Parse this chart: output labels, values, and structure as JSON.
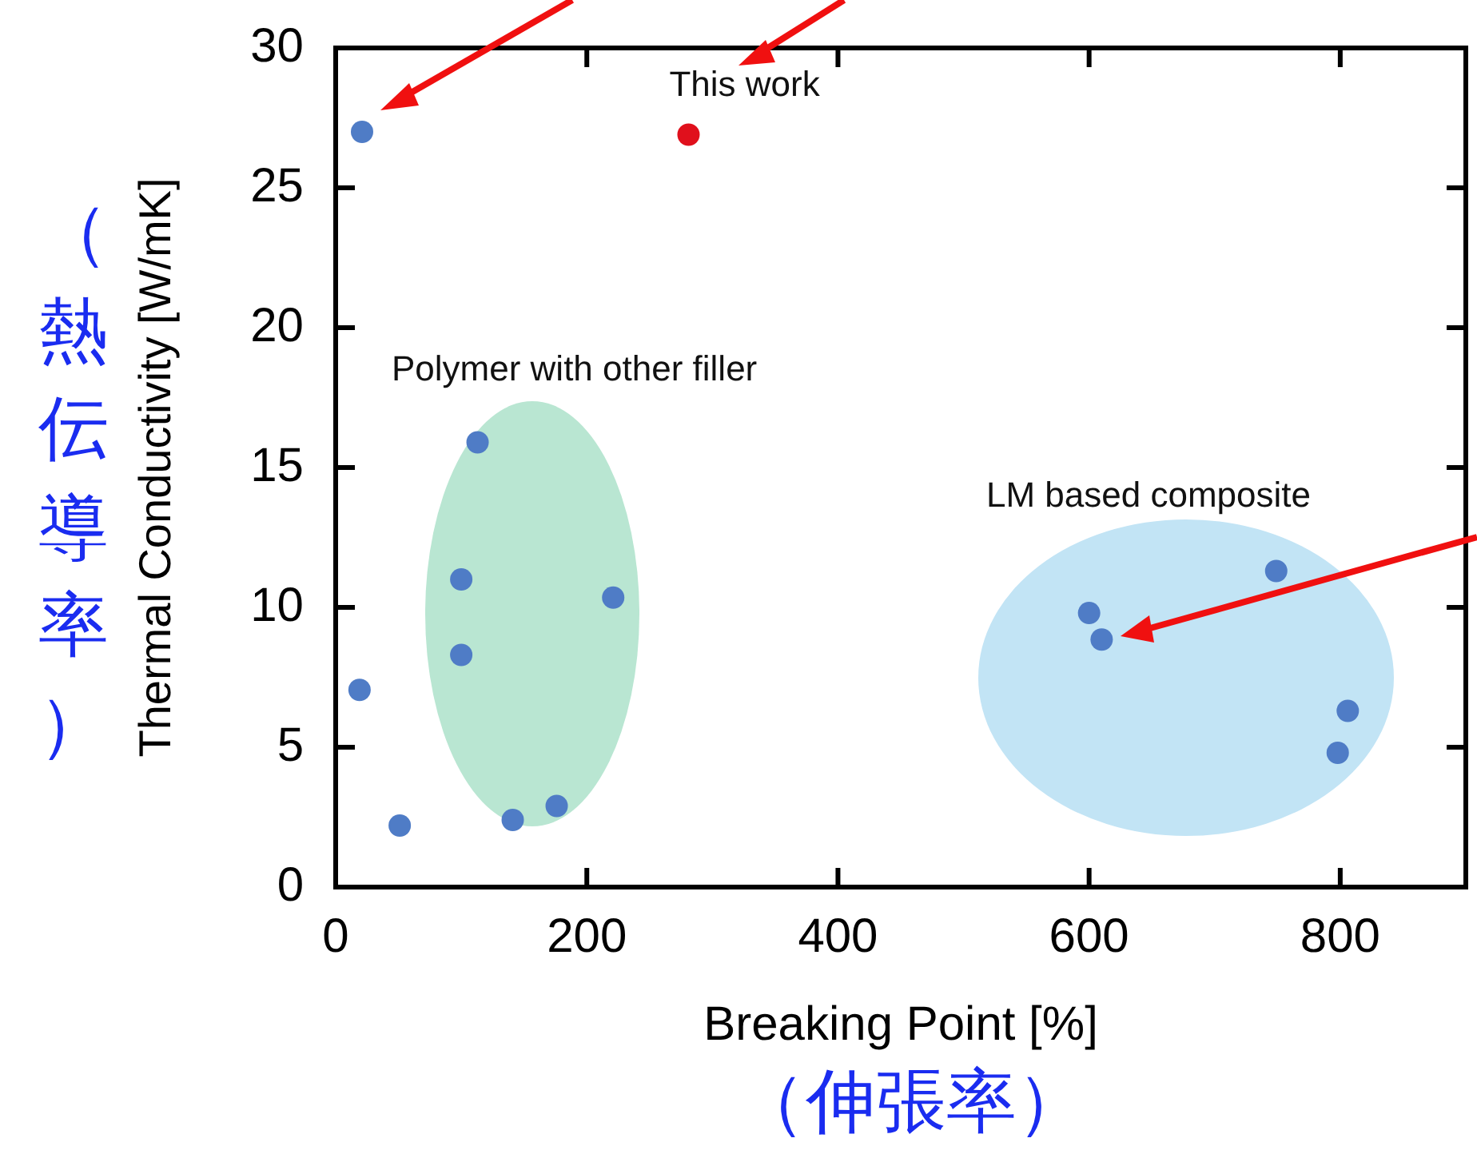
{
  "chart_data": {
    "type": "scatter",
    "xlabel": "Breaking Point [%]",
    "ylabel": "Thermal Conductivity [W/mK]",
    "xlim": [
      0,
      900
    ],
    "xticks": [
      0,
      200,
      400,
      600,
      800
    ],
    "ylim": [
      0,
      30
    ],
    "yticks": [
      0,
      5,
      10,
      15,
      20,
      25,
      30
    ],
    "grid": false,
    "legend": false,
    "marker": "circle",
    "series": [
      {
        "color": "#4f7cc6",
        "x": [
          21,
          19,
          51,
          113,
          100,
          100,
          221,
          141,
          176,
          600,
          610,
          749,
          806,
          798
        ],
        "values": [
          27.0,
          7.05,
          2.2,
          15.9,
          11.0,
          8.3,
          10.35,
          2.4,
          2.9,
          9.8,
          8.85,
          11.3,
          6.3,
          4.8
        ]
      },
      {
        "color": "#e0101c",
        "x": [
          281
        ],
        "values": [
          26.9
        ]
      }
    ],
    "annotations": [
      {
        "text": "This work",
        "x": 281,
        "y": 26.9
      },
      "Polymer with other filler",
      "LM based composite",
      "（熱伝導率）",
      "（伸張率）"
    ]
  }
}
